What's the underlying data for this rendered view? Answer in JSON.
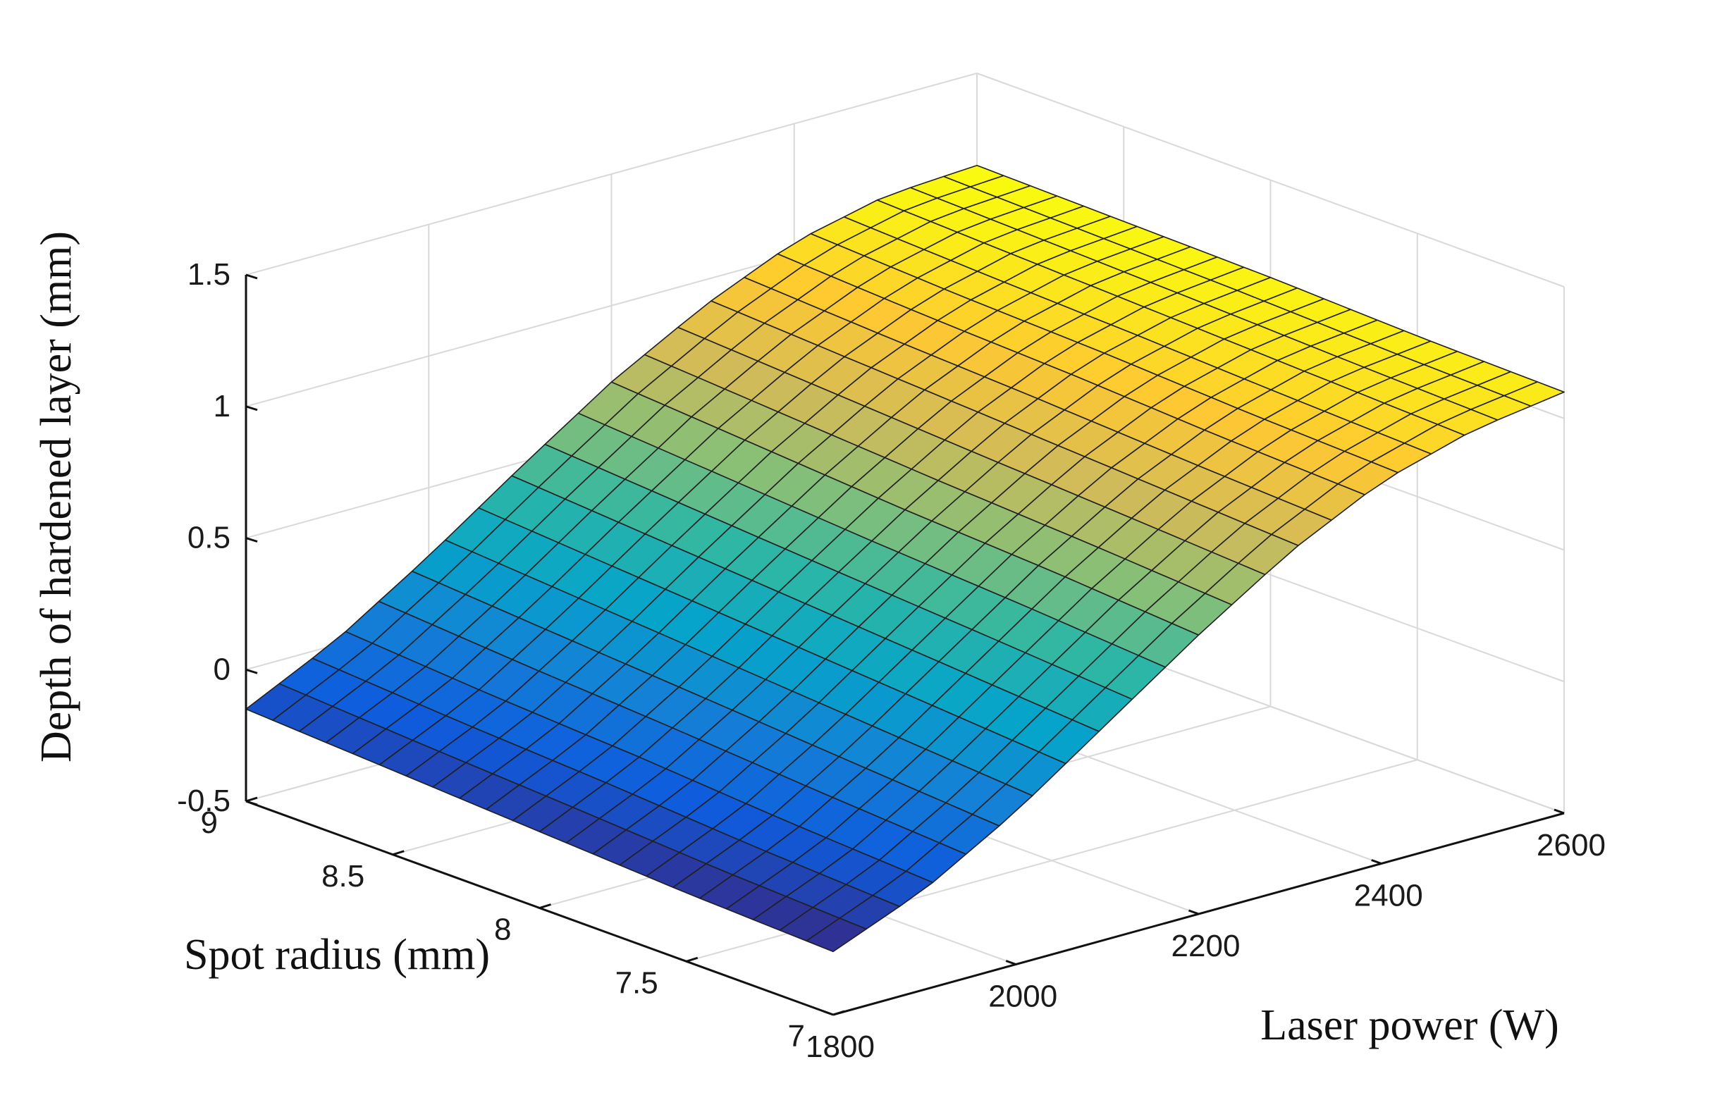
{
  "chart_data": {
    "type": "surface",
    "title": "",
    "xlabel": "Laser power (W)",
    "ylabel": "Spot radius (mm)",
    "zlabel": "Depth of hardened layer (mm)",
    "xlim": [
      1800,
      2600
    ],
    "ylim": [
      7,
      9
    ],
    "zlim": [
      -0.5,
      1.5
    ],
    "xticks": [
      "1800",
      "2000",
      "2200",
      "2400",
      "2600"
    ],
    "yticks": [
      "7",
      "7.5",
      "8",
      "8.5",
      "9"
    ],
    "zticks": [
      "-0.5",
      "0",
      "0.5",
      "1",
      "1.5"
    ],
    "grid": true,
    "colormap": "parula",
    "colors": [
      "#352a87",
      "#0f5cdd",
      "#1481d6",
      "#06a4ca",
      "#2eb7a4",
      "#87bf77",
      "#d1bb59",
      "#fec832",
      "#f9fb0e"
    ],
    "grid_size": [
      22,
      22
    ],
    "corner_values": {
      "laser_1800_spot_9": -0.15,
      "laser_1800_spot_7": -0.26,
      "laser_2600_spot_7": 1.1,
      "laser_2600_spot_9": 1.15
    },
    "surface_rows_laser_power": [
      1800,
      1900,
      2000,
      2100,
      2200,
      2300,
      2400,
      2500,
      2600
    ],
    "surface_cols_spot_radius": [
      7,
      7.5,
      8,
      8.5,
      9
    ],
    "z_values": [
      [
        -0.26,
        -0.24,
        -0.21,
        -0.18,
        -0.15
      ],
      [
        -0.12,
        -0.09,
        -0.05,
        -0.02,
        0.02
      ],
      [
        0.08,
        0.12,
        0.16,
        0.2,
        0.24
      ],
      [
        0.32,
        0.36,
        0.4,
        0.44,
        0.48
      ],
      [
        0.56,
        0.6,
        0.63,
        0.67,
        0.71
      ],
      [
        0.78,
        0.81,
        0.84,
        0.87,
        0.9
      ],
      [
        0.95,
        0.97,
        1.0,
        1.02,
        1.05
      ],
      [
        1.05,
        1.07,
        1.09,
        1.11,
        1.13
      ],
      [
        1.1,
        1.11,
        1.13,
        1.14,
        1.15
      ]
    ]
  }
}
